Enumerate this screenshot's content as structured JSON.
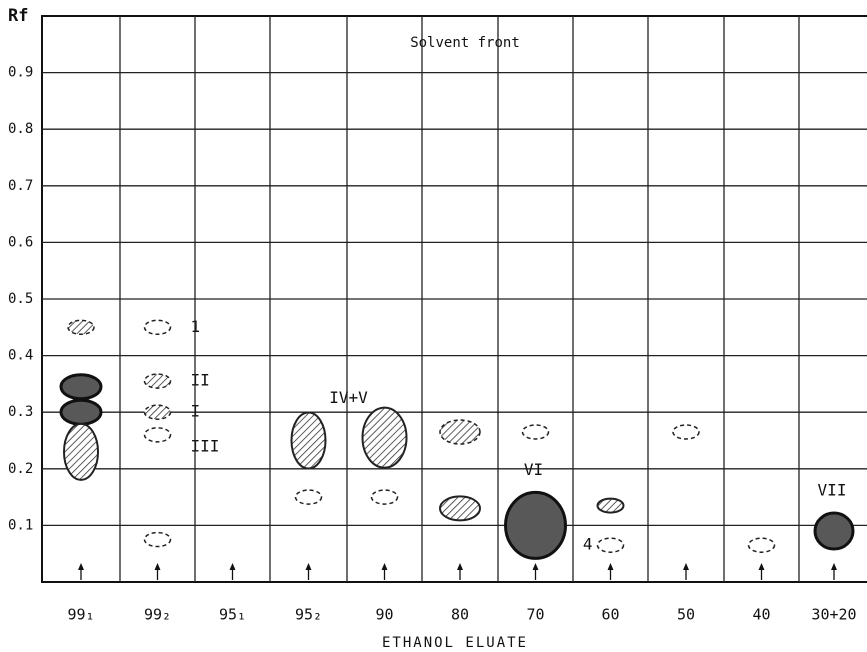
{
  "chart_data": {
    "type": "tlc",
    "y_label": "Rf",
    "annotation": "Solvent front",
    "x_label": "ETHANOL ELUATE",
    "ylim": [
      0,
      1
    ],
    "yticks": [
      0.1,
      0.2,
      0.3,
      0.4,
      0.5,
      0.6,
      0.7,
      0.8,
      0.9
    ],
    "lanes": [
      {
        "label": "99₁",
        "spots": [
          {
            "rf": 0.45,
            "style": "dashed-hatched",
            "size": "small"
          },
          {
            "rf": 0.345,
            "style": "solid",
            "size": "medium"
          },
          {
            "rf": 0.3,
            "style": "solid",
            "size": "medium"
          },
          {
            "rf": 0.23,
            "style": "hatched",
            "size": "tall"
          }
        ]
      },
      {
        "label": "99₂",
        "spots": [
          {
            "rf": 0.45,
            "style": "dashed",
            "size": "small",
            "label": "1",
            "label_pos": "right"
          },
          {
            "rf": 0.355,
            "style": "dashed-hatched",
            "size": "small",
            "label": "II",
            "label_pos": "right"
          },
          {
            "rf": 0.3,
            "style": "dashed-hatched",
            "size": "small",
            "label": "I",
            "label_pos": "right"
          },
          {
            "rf": 0.26,
            "style": "dashed",
            "size": "small",
            "label": "III",
            "label_pos": "right-low"
          },
          {
            "rf": 0.075,
            "style": "dashed",
            "size": "small"
          }
        ]
      },
      {
        "label": "95₁",
        "spots": []
      },
      {
        "label": "95₂",
        "spots": [
          {
            "rf": 0.25,
            "style": "hatched",
            "size": "tall",
            "label": "IV+V",
            "label_pos": "above-right"
          },
          {
            "rf": 0.15,
            "style": "dashed",
            "size": "small"
          }
        ]
      },
      {
        "label": "90",
        "spots": [
          {
            "rf": 0.255,
            "style": "hatched",
            "size": "large"
          },
          {
            "rf": 0.15,
            "style": "dashed",
            "size": "small"
          }
        ]
      },
      {
        "label": "80",
        "spots": [
          {
            "rf": 0.265,
            "style": "dashed-hatched",
            "size": "medium"
          },
          {
            "rf": 0.13,
            "style": "hatched",
            "size": "medium"
          }
        ]
      },
      {
        "label": "70",
        "spots": [
          {
            "rf": 0.265,
            "style": "dashed",
            "size": "small"
          },
          {
            "rf": 0.1,
            "style": "solid",
            "size": "huge",
            "label": "VI",
            "label_pos": "above"
          }
        ]
      },
      {
        "label": "60",
        "spots": [
          {
            "rf": 0.135,
            "style": "hatched",
            "size": "small"
          },
          {
            "rf": 0.065,
            "style": "dashed",
            "size": "small",
            "label": "4",
            "label_pos": "left"
          }
        ]
      },
      {
        "label": "50",
        "spots": [
          {
            "rf": 0.265,
            "style": "dashed",
            "size": "small"
          }
        ]
      },
      {
        "label": "40",
        "spots": [
          {
            "rf": 0.065,
            "style": "dashed",
            "size": "small"
          }
        ]
      },
      {
        "label": "30+20",
        "spots": [
          {
            "rf": 0.09,
            "style": "solid",
            "size": "round",
            "label": "VII",
            "label_pos": "above"
          }
        ]
      }
    ]
  }
}
